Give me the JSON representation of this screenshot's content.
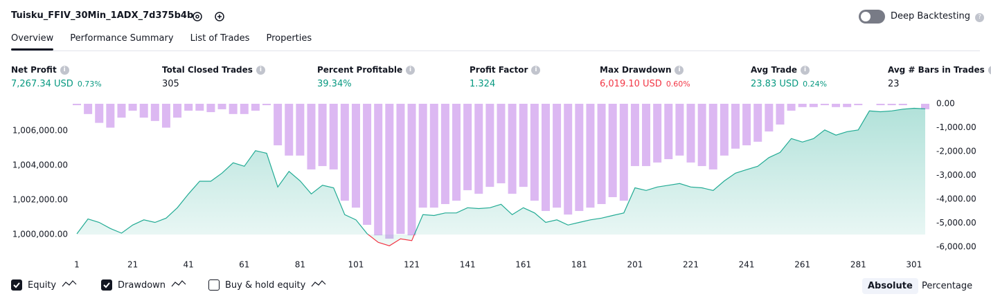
{
  "header": {
    "title": "Tuisku_FFIV_30Min_1ADX_7d375b4b",
    "toggle_label": "Deep Backtesting",
    "toggle_on": false
  },
  "tabs": {
    "items": [
      "Overview",
      "Performance Summary",
      "List of Trades",
      "Properties"
    ],
    "active": 0
  },
  "metrics": [
    {
      "label": "Net Profit",
      "value": "7,267.34 USD",
      "pct": "0.73%",
      "color": "#089981"
    },
    {
      "label": "Total Closed Trades",
      "value": "305",
      "color": "#131722"
    },
    {
      "label": "Percent Profitable",
      "value": "39.34%",
      "color": "#089981"
    },
    {
      "label": "Profit Factor",
      "value": "1.324",
      "color": "#089981"
    },
    {
      "label": "Max Drawdown",
      "value": "6,019.10 USD",
      "pct": "0.60%",
      "color": "#f23645"
    },
    {
      "label": "Avg Trade",
      "value": "23.83 USD",
      "pct": "0.24%",
      "color": "#089981"
    },
    {
      "label": "Avg # Bars in Trades",
      "value": "23",
      "color": "#131722"
    }
  ],
  "chart_data": {
    "type": "equity",
    "x": [
      1,
      5,
      9,
      13,
      17,
      21,
      25,
      29,
      33,
      37,
      41,
      45,
      49,
      53,
      57,
      61,
      65,
      69,
      73,
      77,
      81,
      85,
      89,
      93,
      97,
      101,
      105,
      109,
      113,
      117,
      121,
      125,
      129,
      133,
      137,
      141,
      145,
      149,
      153,
      157,
      161,
      165,
      169,
      173,
      177,
      181,
      185,
      189,
      193,
      197,
      201,
      205,
      209,
      213,
      217,
      221,
      225,
      229,
      233,
      237,
      241,
      245,
      249,
      253,
      257,
      261,
      265,
      269,
      273,
      277,
      281,
      285,
      289,
      293,
      297,
      301,
      305
    ],
    "xlim": [
      1,
      305
    ],
    "xticks": [
      1,
      21,
      41,
      61,
      81,
      101,
      121,
      141,
      161,
      181,
      201,
      221,
      241,
      261,
      281,
      301
    ],
    "ylim": [
      999000,
      1007560
    ],
    "yticks": [
      {
        "value": 1000000,
        "label": "1,000,000.00"
      },
      {
        "value": 1002000,
        "label": "1,002,000.00"
      },
      {
        "value": 1004000,
        "label": "1,004,000.00"
      },
      {
        "value": 1006000,
        "label": "1,006,000.00"
      }
    ],
    "y2lim": [
      -6200,
      0
    ],
    "y2ticks": [
      {
        "value": 0,
        "label": "0.00"
      },
      {
        "value": -1000,
        "label": "-1,000.00"
      },
      {
        "value": -2000,
        "label": "-2,000.00"
      },
      {
        "value": -3000,
        "label": "-3,000.00"
      },
      {
        "value": -4000,
        "label": "-4,000.00"
      },
      {
        "value": -5000,
        "label": "-5,000.00"
      },
      {
        "value": -6000,
        "label": "-6,000.00"
      }
    ],
    "series": [
      {
        "name": "Equity",
        "color": "#22ab94",
        "negative_color": "#f23645",
        "checked": true,
        "values": [
          1000040,
          1000900,
          1000700,
          1000350,
          1000080,
          1000550,
          1000850,
          1000700,
          1000950,
          1001550,
          1002350,
          1003080,
          1003080,
          1003550,
          1004150,
          1003950,
          1004850,
          1004700,
          1002750,
          1003650,
          1003100,
          1002350,
          1002850,
          1002700,
          1001150,
          1000850,
          1000050,
          999550,
          999350,
          999750,
          999650,
          1001150,
          1001100,
          1001250,
          1001250,
          1001550,
          1001500,
          1001550,
          1001750,
          1001150,
          1001550,
          1001250,
          1000700,
          1000850,
          1000550,
          1000700,
          1000850,
          1000950,
          1001100,
          1001250,
          1002700,
          1002550,
          1002750,
          1002850,
          1002950,
          1002750,
          1002700,
          1002550,
          1003100,
          1003550,
          1003750,
          1003950,
          1004450,
          1004750,
          1005550,
          1005350,
          1005550,
          1006050,
          1005750,
          1005950,
          1006050,
          1007150,
          1007100,
          1007150,
          1007250,
          1007300,
          1007267
        ]
      },
      {
        "name": "Drawdown",
        "color": "#dcb8f2",
        "axis": "y2",
        "checked": true,
        "values": [
          -60,
          -430,
          -800,
          -1000,
          -580,
          -290,
          -580,
          -720,
          -1000,
          -580,
          -290,
          -290,
          -350,
          -230,
          -430,
          -430,
          -290,
          -60,
          -1740,
          -2170,
          -2170,
          -2750,
          -2610,
          -2750,
          -4060,
          -4350,
          -5070,
          -5510,
          -5650,
          -5450,
          -5510,
          -4350,
          -4350,
          -4200,
          -4060,
          -3620,
          -3770,
          -3480,
          -3330,
          -3770,
          -3480,
          -4060,
          -4490,
          -4350,
          -4640,
          -4490,
          -4350,
          -4200,
          -3910,
          -4060,
          -2610,
          -2610,
          -2460,
          -2320,
          -2170,
          -2460,
          -2610,
          -2750,
          -2170,
          -1880,
          -1740,
          -1590,
          -1160,
          -870,
          -290,
          -140,
          -140,
          -60,
          -140,
          -140,
          -60,
          0,
          -60,
          -60,
          -60,
          0,
          -230
        ]
      }
    ],
    "buy_hold": {
      "name": "Buy & hold equity",
      "checked": false
    },
    "modes": [
      "Absolute",
      "Percentage"
    ],
    "active_mode": 0
  }
}
